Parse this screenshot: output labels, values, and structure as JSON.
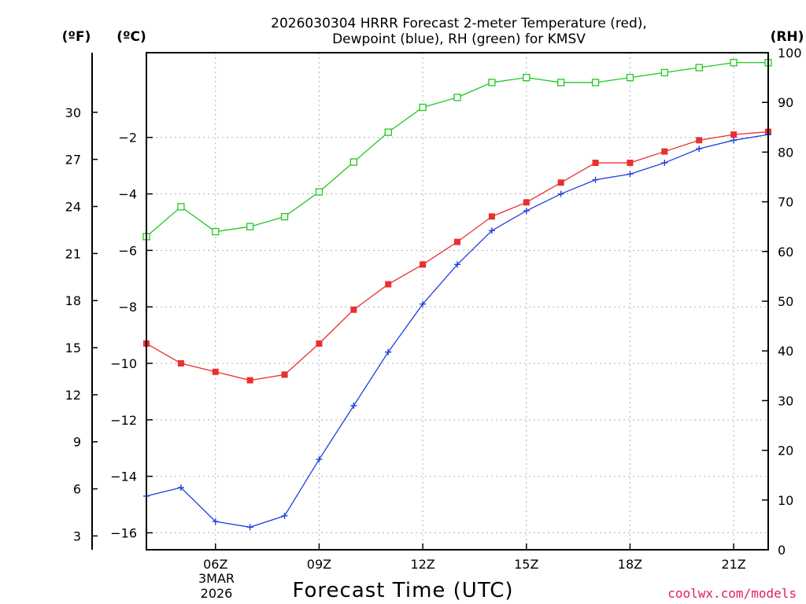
{
  "chart_data": {
    "type": "line",
    "title_line1": "2026030304 HRRR Forecast 2-meter Temperature (red),",
    "title_line2": "Dewpoint (blue), RH (green) for KMSV",
    "xlabel": "Forecast Time (UTC)",
    "date_label_line1": "3MAR",
    "date_label_line2": "2026",
    "credit": "coolwx.com/models",
    "units": {
      "fahrenheit": "(ºF)",
      "celsius": "(ºC)",
      "rh": "(RH)"
    },
    "x_hours": [
      4,
      5,
      6,
      7,
      8,
      9,
      10,
      11,
      12,
      13,
      14,
      15,
      16,
      17,
      18,
      19,
      20,
      21,
      22
    ],
    "x_ticks": [
      {
        "hour": 6,
        "label": "06Z"
      },
      {
        "hour": 9,
        "label": "09Z"
      },
      {
        "hour": 12,
        "label": "12Z"
      },
      {
        "hour": 15,
        "label": "15Z"
      },
      {
        "hour": 18,
        "label": "18Z"
      },
      {
        "hour": 21,
        "label": "21Z"
      }
    ],
    "xlim": [
      4,
      22
    ],
    "celsius_axis": {
      "ylim": [
        -16.6,
        1.0
      ],
      "ticks": [
        {
          "value": -2,
          "label": "−2"
        },
        {
          "value": -4,
          "label": "−4"
        },
        {
          "value": -6,
          "label": "−6"
        },
        {
          "value": -8,
          "label": "−8"
        },
        {
          "value": -10,
          "label": "−10"
        },
        {
          "value": -12,
          "label": "−12"
        },
        {
          "value": -14,
          "label": "−14"
        },
        {
          "value": -16,
          "label": "−16"
        }
      ]
    },
    "fahrenheit_axis": {
      "ticks": [
        {
          "value": 30,
          "label": "30"
        },
        {
          "value": 27,
          "label": "27"
        },
        {
          "value": 24,
          "label": "24"
        },
        {
          "value": 21,
          "label": "21"
        },
        {
          "value": 18,
          "label": "18"
        },
        {
          "value": 15,
          "label": "15"
        },
        {
          "value": 12,
          "label": "12"
        },
        {
          "value": 9,
          "label": "9"
        },
        {
          "value": 6,
          "label": "6"
        },
        {
          "value": 3,
          "label": "3"
        }
      ]
    },
    "rh_axis": {
      "ylim": [
        0,
        100
      ],
      "ticks": [
        {
          "value": 0,
          "label": "0"
        },
        {
          "value": 10,
          "label": "10"
        },
        {
          "value": 20,
          "label": "20"
        },
        {
          "value": 30,
          "label": "30"
        },
        {
          "value": 40,
          "label": "40"
        },
        {
          "value": 50,
          "label": "50"
        },
        {
          "value": 60,
          "label": "60"
        },
        {
          "value": 70,
          "label": "70"
        },
        {
          "value": 80,
          "label": "80"
        },
        {
          "value": 90,
          "label": "90"
        },
        {
          "value": 100,
          "label": "100"
        }
      ]
    },
    "series": [
      {
        "name": "Temperature",
        "color": "#e83030",
        "marker": "filled-square",
        "axis": "celsius",
        "values": [
          -9.3,
          -10.0,
          -10.3,
          -10.6,
          -10.4,
          -9.3,
          -8.1,
          -7.2,
          -6.5,
          -5.7,
          -4.8,
          -4.3,
          -3.6,
          -2.9,
          -2.9,
          -2.5,
          -2.1,
          -1.9,
          -1.8
        ]
      },
      {
        "name": "Dewpoint",
        "color": "#2040e0",
        "marker": "plus",
        "axis": "celsius",
        "values": [
          -14.7,
          -14.4,
          -15.6,
          -15.8,
          -15.4,
          -13.4,
          -11.5,
          -9.6,
          -7.9,
          -6.5,
          -5.3,
          -4.6,
          -4.0,
          -3.5,
          -3.3,
          -2.9,
          -2.4,
          -2.1,
          -1.9
        ]
      },
      {
        "name": "RH",
        "color": "#20c820",
        "marker": "open-square",
        "axis": "rh",
        "values": [
          63,
          69,
          64,
          65,
          67,
          72,
          78,
          84,
          89,
          91,
          94,
          95,
          94,
          94,
          95,
          96,
          97,
          98,
          98
        ]
      }
    ]
  }
}
